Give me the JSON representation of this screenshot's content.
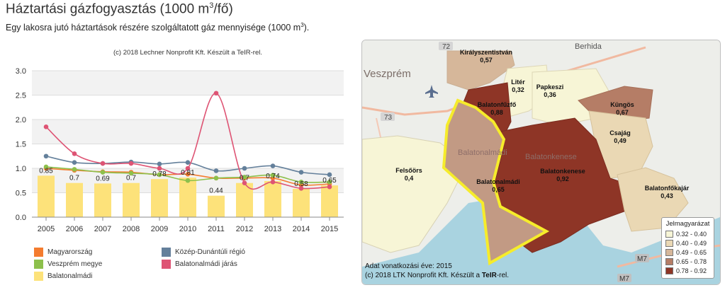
{
  "page": {
    "title_main": "Háztartási gázfogyasztás (1000 m",
    "title_sup": "3",
    "title_end": "/fő)",
    "subtitle_main": "Egy lakosra jutó háztartások részére szolgáltatott gáz mennyisége (1000 m",
    "subtitle_sup": "3",
    "subtitle_end": ")."
  },
  "chart_data": {
    "type": "bar",
    "credit": "(c) 2018 Lechner Nonprofit Kft. Készült a TeIR-rel.",
    "categories": [
      "2005",
      "2006",
      "2007",
      "2008",
      "2009",
      "2010",
      "2011",
      "2012",
      "2013",
      "2014",
      "2015"
    ],
    "yticks": [
      "0.0",
      "0.5",
      "1.0",
      "1.5",
      "2.0",
      "2.5",
      "3.0"
    ],
    "ylim": [
      0,
      3.0
    ],
    "bar_series": {
      "name": "Balatonalmádi",
      "color": "#fde27a",
      "values": [
        0.85,
        0.7,
        0.69,
        0.7,
        0.78,
        0.81,
        0.44,
        0.7,
        0.74,
        0.58,
        0.65
      ],
      "labels": [
        "0.85",
        "0.7",
        "0.69",
        "0.7",
        "0.78",
        "0.81",
        "0.44",
        "0.7",
        "0.74",
        "0.58",
        "0.65"
      ]
    },
    "line_series": [
      {
        "name": "Magyarország",
        "color": "#f47c2f",
        "values": [
          1.0,
          0.96,
          0.93,
          0.92,
          0.87,
          0.88,
          0.8,
          0.8,
          0.8,
          0.66,
          0.68
        ]
      },
      {
        "name": "Veszprém megye",
        "color": "#8dc04c",
        "values": [
          1.03,
          0.98,
          0.92,
          0.9,
          0.87,
          0.75,
          0.8,
          0.82,
          0.86,
          0.72,
          0.72
        ]
      },
      {
        "name": "Közép-Dunántúli régió",
        "color": "#64809b",
        "values": [
          1.25,
          1.12,
          1.1,
          1.13,
          1.09,
          1.12,
          0.95,
          1.0,
          1.05,
          0.92,
          0.87
        ]
      },
      {
        "name": "Balatonalmádi járás",
        "color": "#de5474",
        "values": [
          1.85,
          1.3,
          1.1,
          1.1,
          1.0,
          1.0,
          2.54,
          0.7,
          0.72,
          0.59,
          0.62
        ]
      }
    ],
    "legend_order": [
      {
        "name": "Magyarország",
        "color": "#f47c2f"
      },
      {
        "name": "Közép-Dunántúli régió",
        "color": "#64809b"
      },
      {
        "name": "Veszprém megye",
        "color": "#8dc04c"
      },
      {
        "name": "Balatonalmádi járás",
        "color": "#de5474"
      },
      {
        "name": "Balatonalmádi",
        "color": "#fde27a"
      }
    ]
  },
  "map": {
    "places": [
      {
        "name": "Királyszentistván",
        "value": "0,57"
      },
      {
        "name": "Litér",
        "value": "0,32"
      },
      {
        "name": "Papkeszi",
        "value": "0,36"
      },
      {
        "name": "Balatonfűzfő",
        "value": "0,88"
      },
      {
        "name": "Küngös",
        "value": "0,67"
      },
      {
        "name": "Csajág",
        "value": "0,49"
      },
      {
        "name": "Felsőörs",
        "value": "0,4"
      },
      {
        "name": "Balatonalmádi",
        "value": "0,65"
      },
      {
        "name": "Balatonkenese",
        "value": "0,92"
      },
      {
        "name": "Balatonfőkajár",
        "value": "0,43"
      }
    ],
    "basemap_labels": [
      "Veszprém",
      "Berhida",
      "Balatonkenese",
      "Balatonalmádi",
      "72",
      "73",
      "M7",
      "M7"
    ],
    "legend_title": "Jelmagyarázat",
    "legend": [
      {
        "range": "0.32 - 0.40",
        "color": "#f7f5d6"
      },
      {
        "range": "0.40 - 0.49",
        "color": "#ead8b4"
      },
      {
        "range": "0.49 - 0.65",
        "color": "#d6b79a"
      },
      {
        "range": "0.65 - 0.78",
        "color": "#b57d66"
      },
      {
        "range": "0.78 - 0.92",
        "color": "#8e3526"
      }
    ],
    "footer_line1": "Adat vonatkozási éve: 2015",
    "footer_line2_pre": "(c) 2018 LTK Nonprofit Kft. Készült a ",
    "footer_line2_bold": "TeIR",
    "footer_line2_post": "-rel."
  }
}
